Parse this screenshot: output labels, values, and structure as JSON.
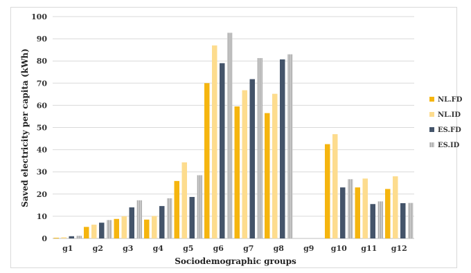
{
  "chart_data": {
    "type": "bar",
    "title": "",
    "xlabel": "Sociodemographic groups",
    "ylabel": "Saved electricity per capita (kWh)",
    "ylim": [
      0,
      100
    ],
    "yticks": [
      0,
      10,
      20,
      30,
      40,
      50,
      60,
      70,
      80,
      90,
      100
    ],
    "grid": true,
    "legend_position": "right",
    "categories": [
      "g1",
      "g2",
      "g3",
      "g4",
      "g5",
      "g6",
      "g7",
      "g8",
      "g9",
      "g10",
      "g11",
      "g12"
    ],
    "series": [
      {
        "name": "NL.FD",
        "color": "#f5b50f",
        "pattern": "solid",
        "values": [
          0.3,
          5.2,
          8.8,
          8.5,
          25.9,
          70.0,
          59.5,
          56.5,
          0,
          42.5,
          23.0,
          22.3
        ]
      },
      {
        "name": "NL.ID",
        "color": "#fddc8e",
        "pattern": "solid",
        "values": [
          0.5,
          6.2,
          10.0,
          10.1,
          34.3,
          87.0,
          66.8,
          65.2,
          0,
          47.0,
          27.0,
          28.0
        ]
      },
      {
        "name": "ES.FD",
        "color": "#44546a",
        "pattern": "solid",
        "values": [
          1.0,
          7.1,
          14.0,
          14.6,
          18.7,
          79.0,
          71.8,
          80.7,
          0,
          23.0,
          15.5,
          15.9
        ]
      },
      {
        "name": "ES.ID",
        "color": "#a6a6a6",
        "pattern": "striped",
        "values": [
          1.2,
          8.3,
          17.2,
          18.1,
          28.5,
          92.7,
          81.3,
          83.0,
          0,
          26.7,
          16.7,
          16.0
        ]
      }
    ]
  }
}
